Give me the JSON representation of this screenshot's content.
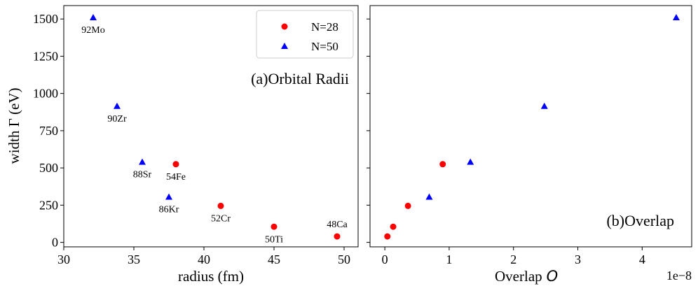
{
  "colors": {
    "n28": "#ff0000",
    "n50": "#0000ff",
    "axis": "#000000"
  },
  "chart_data": [
    {
      "type": "scatter",
      "title": "(a)Orbital Radii",
      "xlabel": "radius (fm)",
      "ylabel": "width Γ (eV)",
      "xlim": [
        30,
        51
      ],
      "ylim": [
        -30,
        1590
      ],
      "xticks": [
        30,
        35,
        40,
        45,
        50
      ],
      "xtick_labels": [
        "30",
        "35",
        "40",
        "45",
        "50"
      ],
      "yticks": [
        0,
        250,
        500,
        750,
        1000,
        1250,
        1500
      ],
      "ytick_labels": [
        "0",
        "250",
        "500",
        "750",
        "1000",
        "1250",
        "1500"
      ],
      "legend": {
        "position": "top-right",
        "entries": [
          {
            "label": "N=28",
            "marker": "circle"
          },
          {
            "label": "N=50",
            "marker": "triangle"
          }
        ]
      },
      "series": [
        {
          "name": "N=28",
          "marker": "circle",
          "points": [
            {
              "x": 49.5,
              "y": 40,
              "label": "48Ca",
              "label_pos": "above"
            },
            {
              "x": 45.0,
              "y": 105,
              "label": "50Ti",
              "label_pos": "below"
            },
            {
              "x": 41.2,
              "y": 245,
              "label": "52Cr",
              "label_pos": "below"
            },
            {
              "x": 38.0,
              "y": 525,
              "label": "54Fe",
              "label_pos": "below"
            }
          ]
        },
        {
          "name": "N=50",
          "marker": "triangle",
          "points": [
            {
              "x": 37.5,
              "y": 305,
              "label": "86Kr",
              "label_pos": "below"
            },
            {
              "x": 35.6,
              "y": 540,
              "label": "88Sr",
              "label_pos": "below"
            },
            {
              "x": 33.8,
              "y": 915,
              "label": "90Zr",
              "label_pos": "below"
            },
            {
              "x": 32.1,
              "y": 1510,
              "label": "92Mo",
              "label_pos": "below"
            }
          ]
        }
      ]
    },
    {
      "type": "scatter",
      "title": "(b)Overlap",
      "xlabel": "Overlap O",
      "xlabel_text": "Overlap",
      "xlabel_symbol": "O",
      "offset_text": "1e−8",
      "xlim": [
        -0.23,
        4.77
      ],
      "ylim": [
        -30,
        1590
      ],
      "xticks": [
        0,
        1,
        2,
        3,
        4
      ],
      "xtick_labels": [
        "0",
        "1",
        "2",
        "3",
        "4"
      ],
      "series": [
        {
          "name": "N=28",
          "marker": "circle",
          "points": [
            {
              "x": 0.04,
              "y": 40
            },
            {
              "x": 0.13,
              "y": 105
            },
            {
              "x": 0.36,
              "y": 245
            },
            {
              "x": 0.9,
              "y": 525
            }
          ]
        },
        {
          "name": "N=50",
          "marker": "triangle",
          "points": [
            {
              "x": 0.69,
              "y": 305
            },
            {
              "x": 1.33,
              "y": 540
            },
            {
              "x": 2.48,
              "y": 915
            },
            {
              "x": 4.53,
              "y": 1510
            }
          ]
        }
      ]
    }
  ]
}
